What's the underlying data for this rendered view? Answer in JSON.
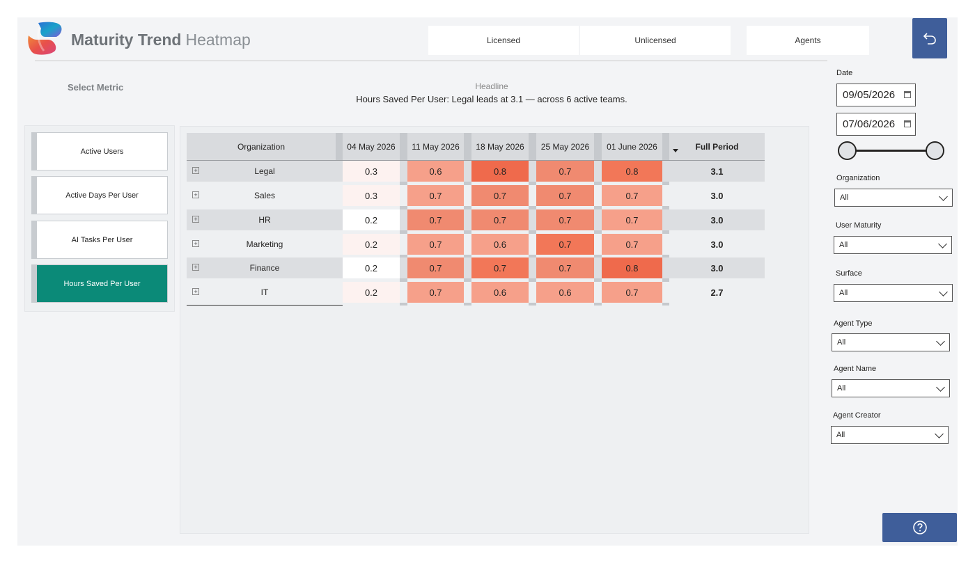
{
  "header": {
    "title": "Maturity Trend",
    "subtitle": "Heatmap",
    "tabs": [
      "Licensed",
      "Unlicensed",
      "Agents"
    ]
  },
  "headline": {
    "label": "Headline",
    "text": "Hours Saved Per User: Legal leads at 3.1 — across 6 active teams."
  },
  "metric_selector": {
    "label": "Select Metric",
    "items": [
      "Active Users",
      "Active Days Per User",
      "AI Tasks Per User",
      "Hours Saved Per User"
    ],
    "selected": "Hours Saved Per User"
  },
  "table": {
    "columns": [
      "Organization",
      "04 May 2026",
      "11 May 2026",
      "18 May 2026",
      "25 May 2026",
      "01 June 2026",
      "Full Period"
    ],
    "rows": [
      {
        "org": "Legal",
        "values": [
          "0.3",
          "0.6",
          "0.8",
          "0.7",
          "0.8"
        ],
        "total": "3.1"
      },
      {
        "org": "Sales",
        "values": [
          "0.3",
          "0.7",
          "0.7",
          "0.7",
          "0.7"
        ],
        "total": "3.0"
      },
      {
        "org": "HR",
        "values": [
          "0.2",
          "0.7",
          "0.7",
          "0.7",
          "0.7"
        ],
        "total": "3.0"
      },
      {
        "org": "Marketing",
        "values": [
          "0.2",
          "0.7",
          "0.6",
          "0.7",
          "0.7"
        ],
        "total": "3.0"
      },
      {
        "org": "Finance",
        "values": [
          "0.2",
          "0.7",
          "0.7",
          "0.7",
          "0.8"
        ],
        "total": "3.0"
      },
      {
        "org": "IT",
        "values": [
          "0.2",
          "0.7",
          "0.6",
          "0.6",
          "0.7"
        ],
        "total": "2.7"
      }
    ],
    "heat_colors": [
      "#fdf2f0",
      "#f6a08a",
      "#f08a70",
      "#f27758",
      "#ef6a4c",
      "#ffffff"
    ]
  },
  "filters": {
    "date_label": "Date",
    "date_start": "09/05/2026",
    "date_end": "07/06/2026",
    "dropdowns": [
      {
        "label": "Organization",
        "value": "All"
      },
      {
        "label": "User Maturity",
        "value": "All"
      },
      {
        "label": "Surface",
        "value": "All"
      },
      {
        "label": "Agent Type",
        "value": "All"
      },
      {
        "label": "Agent Name",
        "value": "All"
      },
      {
        "label": "Agent Creator",
        "value": "All"
      }
    ]
  },
  "icons": {
    "back": "undo-arrow-icon",
    "help": "question-circle-icon",
    "calendar": "calendar-icon",
    "sort": "sort-desc-icon",
    "expand": "plus-square-icon"
  },
  "colors": {
    "accent_teal": "#0b8a78",
    "button_blue": "#3f5e9a"
  }
}
